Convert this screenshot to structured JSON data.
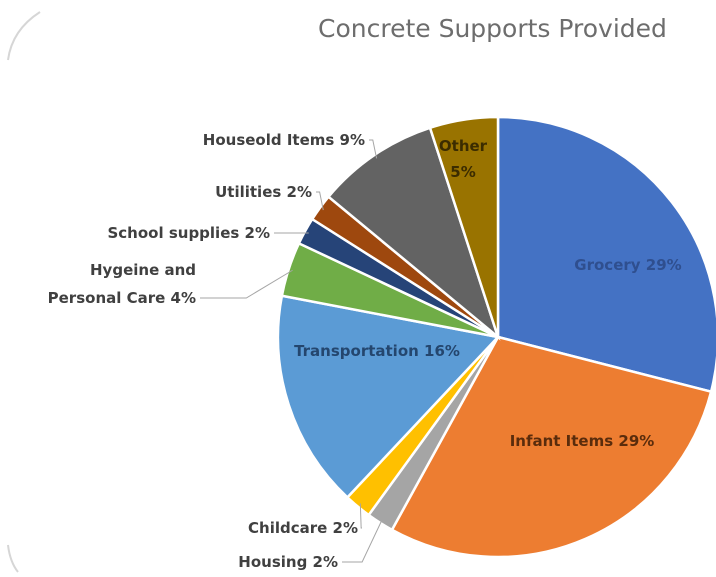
{
  "chart_data": {
    "type": "pie",
    "title": "Concrete Supports Provided",
    "slices": [
      {
        "label": "Grocery",
        "value": 29,
        "label_text": "Grocery 29%",
        "color": "#4472c4"
      },
      {
        "label": "Infant Items",
        "value": 29,
        "label_text": "Infant Items 29%",
        "color": "#ed7d31"
      },
      {
        "label": "Housing",
        "value": 2,
        "label_text": "Housing 2%",
        "color": "#a5a5a5"
      },
      {
        "label": "Childcare",
        "value": 2,
        "label_text": "Childcare 2%",
        "color": "#ffc000"
      },
      {
        "label": "Transportation",
        "value": 16,
        "label_text": "Transportation 16%",
        "color": "#5b9bd5"
      },
      {
        "label": "Hygeine and Personal Care",
        "value": 4,
        "label_text": [
          "Hygeine and",
          "Personal Care 4%"
        ],
        "color": "#70ad47"
      },
      {
        "label": "School supplies",
        "value": 2,
        "label_text": "School supplies 2%",
        "color": "#264478"
      },
      {
        "label": "Utilities",
        "value": 2,
        "label_text": "Utilities 2%",
        "color": "#9e480e"
      },
      {
        "label": "Houseold Items",
        "value": 9,
        "label_text": "Houseold Items 9%",
        "color": "#636363"
      },
      {
        "label": "Other",
        "value": 5,
        "label_text": [
          "Other",
          "5%"
        ],
        "color": "#997300"
      }
    ]
  }
}
